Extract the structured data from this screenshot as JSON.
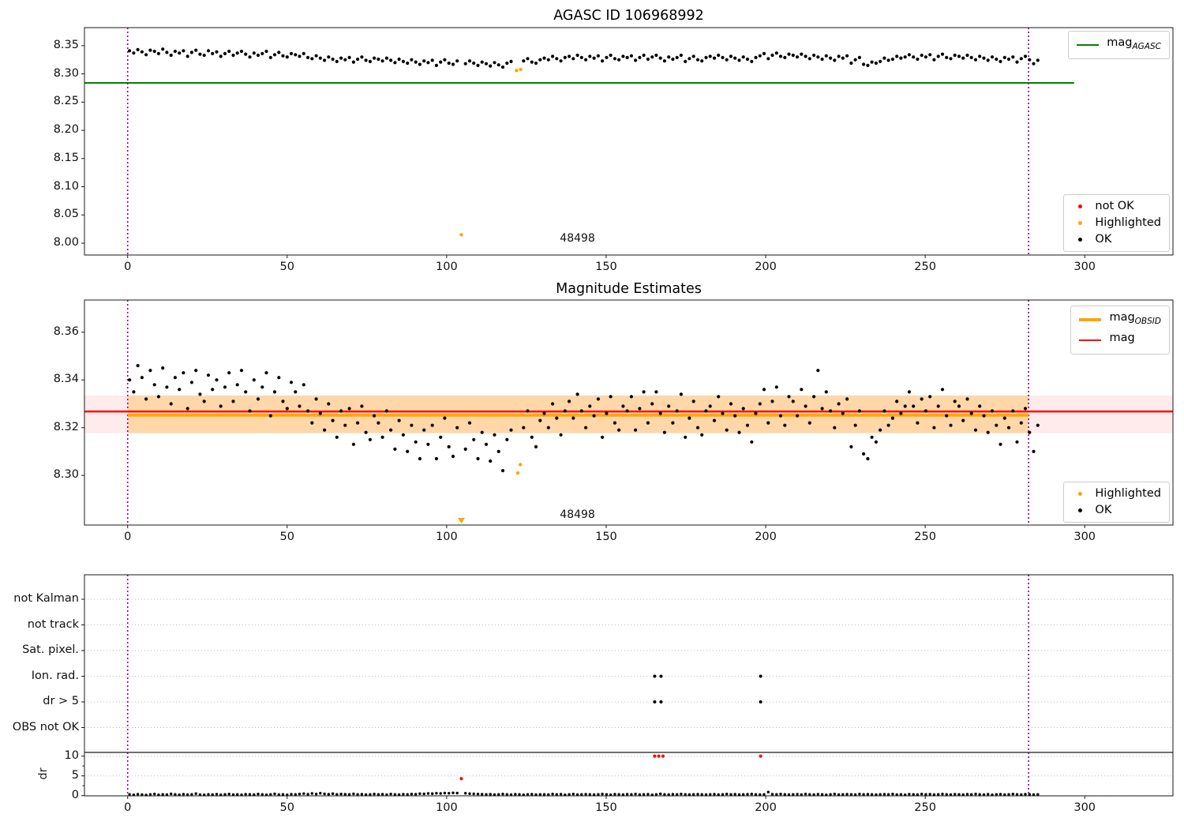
{
  "figure": {
    "top_title": "AGASC ID 106968992",
    "middle_title": "Magnitude Estimates"
  },
  "colors": {
    "green": "#008000",
    "red": "#ff0000",
    "orange": "#ffa500",
    "black": "#000000",
    "vline_purple": "#8b008b",
    "band_pink": "rgba(255,0,0,0.08)",
    "band_orange": "rgba(255,165,0,0.28)",
    "grid_gray": "#b8b8b8",
    "spine": "#1a1a1a"
  },
  "chart_data": [
    {
      "id": "agasc-mag-panel",
      "type": "scatter",
      "title": "AGASC ID 106968992",
      "xlim": [
        -13.5,
        327.7
      ],
      "ylim": [
        7.979,
        8.382
      ],
      "xticks": [
        0,
        50,
        100,
        150,
        200,
        250,
        300
      ],
      "yticks": [
        8.35,
        8.3,
        8.25,
        8.2,
        8.15,
        8.1,
        8.05,
        8.0
      ],
      "ytick_labels": [
        "8.35",
        "8.30",
        "8.25",
        "8.20",
        "8.15",
        "8.10",
        "8.05",
        "8.00"
      ],
      "grid": false,
      "mag_agasc_line": {
        "value": 8.284,
        "x_end": 296.7
      },
      "vlines": [
        0,
        282.4
      ],
      "ok": {
        "x_start": 0.6,
        "x_step": 1.3,
        "y": [
          8.341,
          8.337,
          8.343,
          8.339,
          8.334,
          8.342,
          8.34,
          8.336,
          8.344,
          8.338,
          8.333,
          8.34,
          8.337,
          8.341,
          8.331,
          8.338,
          8.342,
          8.335,
          8.333,
          8.341,
          8.336,
          8.339,
          8.331,
          8.336,
          8.34,
          8.333,
          8.337,
          8.34,
          8.335,
          8.33,
          8.337,
          8.333,
          8.336,
          8.34,
          8.329,
          8.334,
          8.338,
          8.332,
          8.33,
          8.336,
          8.334,
          8.331,
          8.336,
          8.329,
          8.327,
          8.332,
          8.328,
          8.324,
          8.33,
          8.326,
          8.322,
          8.328,
          8.325,
          8.329,
          8.321,
          8.326,
          8.33,
          8.324,
          8.322,
          8.328,
          8.326,
          8.323,
          8.328,
          8.324,
          8.32,
          8.326,
          8.322,
          8.319,
          8.325,
          8.321,
          8.317,
          8.323,
          8.32,
          8.324,
          8.315,
          8.321,
          8.325,
          8.319,
          8.317,
          8.323,
          null,
          8.318,
          8.323,
          8.319,
          8.315,
          8.321,
          8.318,
          8.314,
          8.32,
          8.316,
          8.312,
          8.319,
          8.322,
          null,
          null,
          8.323,
          8.327,
          8.321,
          8.319,
          8.325,
          8.328,
          8.325,
          8.331,
          8.327,
          8.323,
          8.329,
          8.331,
          8.327,
          8.333,
          8.329,
          8.325,
          8.331,
          8.328,
          8.332,
          8.323,
          8.329,
          8.333,
          8.327,
          8.325,
          8.331,
          8.329,
          8.332,
          8.324,
          8.329,
          8.333,
          8.326,
          8.33,
          8.333,
          8.328,
          8.323,
          8.33,
          8.326,
          8.329,
          8.333,
          8.322,
          8.327,
          8.331,
          8.325,
          8.323,
          8.329,
          8.331,
          8.328,
          8.333,
          8.329,
          8.325,
          8.331,
          8.328,
          8.324,
          8.33,
          8.326,
          8.322,
          8.329,
          8.332,
          8.336,
          8.327,
          8.333,
          8.337,
          8.331,
          8.329,
          8.335,
          8.333,
          8.33,
          8.335,
          8.331,
          8.327,
          8.333,
          8.33,
          8.326,
          8.332,
          8.328,
          8.324,
          8.331,
          8.328,
          8.332,
          8.319,
          8.325,
          8.329,
          8.317,
          8.315,
          8.321,
          8.319,
          8.322,
          8.328,
          8.324,
          8.326,
          8.331,
          8.328,
          8.33,
          8.334,
          8.33,
          8.326,
          8.333,
          8.33,
          8.334,
          8.325,
          8.331,
          8.335,
          8.329,
          8.327,
          8.333,
          8.331,
          8.328,
          8.333,
          8.329,
          8.325,
          8.331,
          8.328,
          8.324,
          8.33,
          8.326,
          8.322,
          8.329,
          8.326,
          8.33,
          8.321,
          8.327,
          8.331,
          8.325,
          8.318,
          8.324
        ]
      },
      "highlighted": [
        [
          104.6,
          8.015
        ],
        [
          121.9,
          8.306
        ],
        [
          123.2,
          8.308
        ]
      ],
      "not_ok": [],
      "annotation": {
        "text": "48498",
        "x": 141,
        "y": 8.008
      },
      "legend_line": {
        "entries": [
          {
            "label_main": "mag",
            "label_sub": "AGASC",
            "color": "green"
          }
        ]
      },
      "legend_points": {
        "entries": [
          {
            "label": "not OK",
            "color": "red"
          },
          {
            "label": "Highlighted",
            "color": "orange"
          },
          {
            "label": "OK",
            "color": "black"
          }
        ]
      }
    },
    {
      "id": "mag-estimates-panel",
      "type": "scatter",
      "title": "Magnitude Estimates",
      "xlim": [
        -13.5,
        327.7
      ],
      "ylim": [
        8.2792,
        8.3735
      ],
      "xticks": [
        0,
        50,
        100,
        150,
        200,
        250,
        300
      ],
      "yticks": [
        8.36,
        8.34,
        8.32,
        8.3
      ],
      "ytick_labels": [
        "8.36",
        "8.34",
        "8.32",
        "8.30"
      ],
      "grid": false,
      "mag_line": {
        "value": 8.3268
      },
      "mag_obsid_line": {
        "value": 8.3252,
        "x_range": [
          0,
          282.4
        ]
      },
      "band": {
        "lo": 8.3177,
        "hi": 8.3335,
        "obsid_x_range": [
          0,
          282.4
        ]
      },
      "vlines": [
        0,
        282.4
      ],
      "ok": {
        "x_start": 0.6,
        "x_step": 1.3,
        "y": [
          8.34,
          8.335,
          8.346,
          8.341,
          8.332,
          8.344,
          8.338,
          8.333,
          8.345,
          8.337,
          8.33,
          8.341,
          8.336,
          8.343,
          8.328,
          8.339,
          8.344,
          8.334,
          8.331,
          8.342,
          8.336,
          8.34,
          8.329,
          8.337,
          8.343,
          8.331,
          8.338,
          8.344,
          8.335,
          8.327,
          8.34,
          8.332,
          8.337,
          8.343,
          8.325,
          8.335,
          8.341,
          8.331,
          8.328,
          8.339,
          8.335,
          8.329,
          8.338,
          8.327,
          8.322,
          8.332,
          8.326,
          8.319,
          8.33,
          8.323,
          8.316,
          8.327,
          8.321,
          8.328,
          8.313,
          8.322,
          8.329,
          8.318,
          8.315,
          8.325,
          8.322,
          8.316,
          8.327,
          8.319,
          8.311,
          8.323,
          8.317,
          8.31,
          8.321,
          8.314,
          8.307,
          8.319,
          8.313,
          8.321,
          8.307,
          8.316,
          8.324,
          8.312,
          8.308,
          8.32,
          null,
          8.311,
          8.322,
          8.315,
          8.307,
          8.318,
          8.313,
          8.306,
          8.317,
          8.31,
          8.302,
          8.315,
          8.319,
          null,
          null,
          8.32,
          8.327,
          8.316,
          8.312,
          8.323,
          8.326,
          8.32,
          8.33,
          8.324,
          8.317,
          8.327,
          8.331,
          8.324,
          8.334,
          8.327,
          8.32,
          8.329,
          8.325,
          8.332,
          8.316,
          8.326,
          8.333,
          8.322,
          8.319,
          8.329,
          8.327,
          8.333,
          8.319,
          8.328,
          8.335,
          8.322,
          8.33,
          8.335,
          8.326,
          8.318,
          8.329,
          8.322,
          8.327,
          8.334,
          8.316,
          8.324,
          8.331,
          8.32,
          8.317,
          8.327,
          8.329,
          8.323,
          8.333,
          8.326,
          8.319,
          8.33,
          8.325,
          8.318,
          8.328,
          8.321,
          8.314,
          8.326,
          8.33,
          8.336,
          8.322,
          8.331,
          8.337,
          8.325,
          8.321,
          8.333,
          8.331,
          8.325,
          8.336,
          8.329,
          8.322,
          8.333,
          8.344,
          8.328,
          8.335,
          8.327,
          8.32,
          8.33,
          8.326,
          8.332,
          8.312,
          8.321,
          8.327,
          8.309,
          8.307,
          8.316,
          8.314,
          8.319,
          8.327,
          8.321,
          8.324,
          8.331,
          8.326,
          8.329,
          8.335,
          8.329,
          8.322,
          8.332,
          8.327,
          8.333,
          8.32,
          8.329,
          8.336,
          8.325,
          8.321,
          8.331,
          8.329,
          8.323,
          8.332,
          8.326,
          8.319,
          8.329,
          8.325,
          8.318,
          8.327,
          8.321,
          8.313,
          8.324,
          8.32,
          8.327,
          8.314,
          8.322,
          8.328,
          8.318,
          8.31,
          8.321
        ]
      },
      "highlighted": [
        [
          122.3,
          8.301
        ],
        [
          123.1,
          8.3045
        ]
      ],
      "clipped_low_markers": [
        {
          "x": 104.6
        }
      ],
      "annotation": {
        "text": "48498",
        "x": 141,
        "y": 8.2835
      },
      "legend_line": {
        "entries": [
          {
            "label_main": "mag",
            "label_sub": "OBSID",
            "color": "orange",
            "thick": 4
          },
          {
            "label_main": "mag",
            "label_sub": "",
            "color": "red",
            "thick": 2
          }
        ]
      },
      "legend_points": {
        "entries": [
          {
            "label": "Highlighted",
            "color": "orange"
          },
          {
            "label": "OK",
            "color": "black"
          }
        ]
      }
    },
    {
      "id": "flags-dr-panel",
      "type": "scatter",
      "xlim": [
        -13.5,
        327.7
      ],
      "xticks": [
        0,
        50,
        100,
        150,
        200,
        250,
        300
      ],
      "flag_rows": [
        "not Kalman",
        "not track",
        "Sat. pixel.",
        "Ion. rad.",
        "dr > 5",
        "OBS not OK"
      ],
      "flag_points": [
        {
          "row": 3,
          "label": "Ion. rad.",
          "x": [
            165.2,
            167.2,
            198.4
          ]
        },
        {
          "row": 4,
          "label": "dr > 5",
          "x": [
            165.2,
            167.2,
            198.4
          ]
        }
      ],
      "vlines": [
        0,
        282.4
      ],
      "dr": {
        "ylabel": "dr",
        "yticks": [
          0,
          5,
          10
        ],
        "ytick_labels": [
          "0",
          "5",
          "10"
        ],
        "ylim": [
          0,
          11
        ],
        "ok": {
          "x_start": 0.6,
          "x_step": 1.3,
          "y": [
            0.3,
            0.2,
            0.35,
            0.25,
            0.15,
            0.3,
            0.4,
            0.2,
            0.3,
            0.25,
            0.45,
            0.3,
            0.2,
            0.35,
            0.25,
            0.3,
            0.5,
            0.25,
            0.2,
            0.3,
            0.25,
            0.35,
            0.2,
            0.3,
            0.4,
            0.25,
            0.3,
            0.2,
            0.35,
            0.3,
            0.25,
            0.4,
            0.3,
            0.2,
            0.3,
            0.45,
            0.25,
            0.3,
            0.2,
            0.35,
            0.3,
            0.4,
            0.5,
            0.35,
            0.55,
            0.4,
            0.6,
            0.45,
            0.35,
            0.5,
            0.3,
            0.4,
            0.35,
            0.3,
            0.45,
            0.3,
            0.35,
            0.25,
            0.3,
            0.4,
            0.3,
            0.35,
            0.25,
            0.4,
            0.3,
            0.25,
            0.35,
            0.3,
            0.4,
            0.35,
            0.5,
            0.45,
            0.55,
            0.5,
            0.6,
            0.55,
            0.65,
            0.6,
            0.7,
            0.65,
            null,
            0.6,
            0.5,
            0.45,
            0.4,
            0.35,
            0.3,
            0.35,
            0.25,
            0.3,
            0.4,
            0.3,
            0.25,
            0.35,
            0.3,
            0.2,
            0.3,
            0.35,
            0.25,
            0.3,
            0.3,
            0.25,
            0.4,
            0.3,
            0.35,
            0.2,
            0.3,
            0.4,
            0.25,
            0.3,
            0.35,
            0.3,
            0.25,
            0.3,
            0.4,
            0.3,
            0.2,
            0.35,
            0.3,
            0.25,
            0.35,
            0.3,
            0.4,
            0.25,
            0.3,
            0.35,
            0.2,
            0.3,
            0.45,
            0.3,
            0.25,
            0.35,
            0.3,
            0.4,
            0.3,
            0.25,
            0.3,
            0.35,
            0.3,
            0.25,
            0.3,
            0.35,
            0.25,
            0.3,
            0.4,
            0.3,
            0.35,
            0.25,
            0.3,
            0.35,
            0.4,
            0.3,
            0.25,
            0.3,
            0.9,
            0.35,
            0.3,
            0.4,
            0.3,
            0.25,
            0.3,
            0.35,
            0.25,
            0.4,
            0.3,
            0.25,
            0.35,
            0.3,
            0.2,
            0.3,
            0.4,
            0.25,
            0.3,
            0.35,
            0.3,
            0.25,
            0.4,
            0.3,
            0.35,
            0.3,
            0.25,
            0.3,
            0.35,
            0.3,
            0.4,
            0.25,
            0.3,
            0.2,
            0.35,
            0.3,
            0.25,
            0.4,
            0.3,
            0.35,
            0.25,
            0.3,
            0.4,
            0.3,
            0.25,
            0.35,
            0.3,
            0.25,
            0.35,
            0.3,
            0.4,
            0.3,
            0.25,
            0.35,
            0.2,
            0.3,
            0.35,
            0.25,
            0.3,
            0.4,
            0.3,
            0.25,
            0.35,
            0.3,
            0.25,
            0.3
          ]
        },
        "not_ok": [
          [
            104.6,
            4.3
          ],
          [
            165.2,
            10
          ],
          [
            166.5,
            10
          ],
          [
            167.8,
            10
          ],
          [
            198.4,
            10
          ]
        ]
      }
    }
  ]
}
